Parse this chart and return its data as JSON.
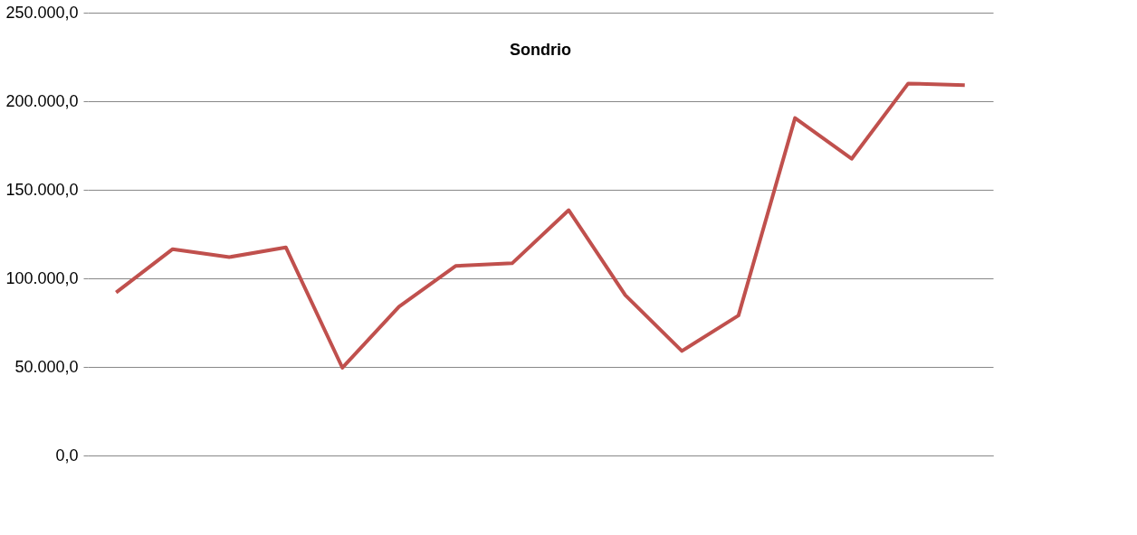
{
  "chart_data": {
    "type": "line",
    "title": "Sondrio",
    "categories": [
      null,
      null,
      null,
      null,
      null,
      null,
      null,
      null,
      null,
      null,
      null,
      null,
      null,
      null,
      null,
      null
    ],
    "series": [
      {
        "color": "#c0504d",
        "values": [
          92000,
          116500,
          112000,
          117500,
          49500,
          84000,
          107000,
          108500,
          138500,
          90500,
          59000,
          79000,
          190500,
          167500,
          210000,
          209000
        ]
      }
    ],
    "ylim": [
      0,
      250000
    ],
    "yticks": [
      {
        "value": 0,
        "label": "0,0"
      },
      {
        "value": 50000,
        "label": "50.000,0"
      },
      {
        "value": 100000,
        "label": "100.000,0"
      },
      {
        "value": 150000,
        "label": "150.000,0"
      },
      {
        "value": 200000,
        "label": "200.000,0"
      },
      {
        "value": 250000,
        "label": "250.000,0"
      }
    ],
    "grid": "y",
    "tick_labels": "y",
    "legend": false,
    "marker": "none",
    "line_style": "solid"
  }
}
